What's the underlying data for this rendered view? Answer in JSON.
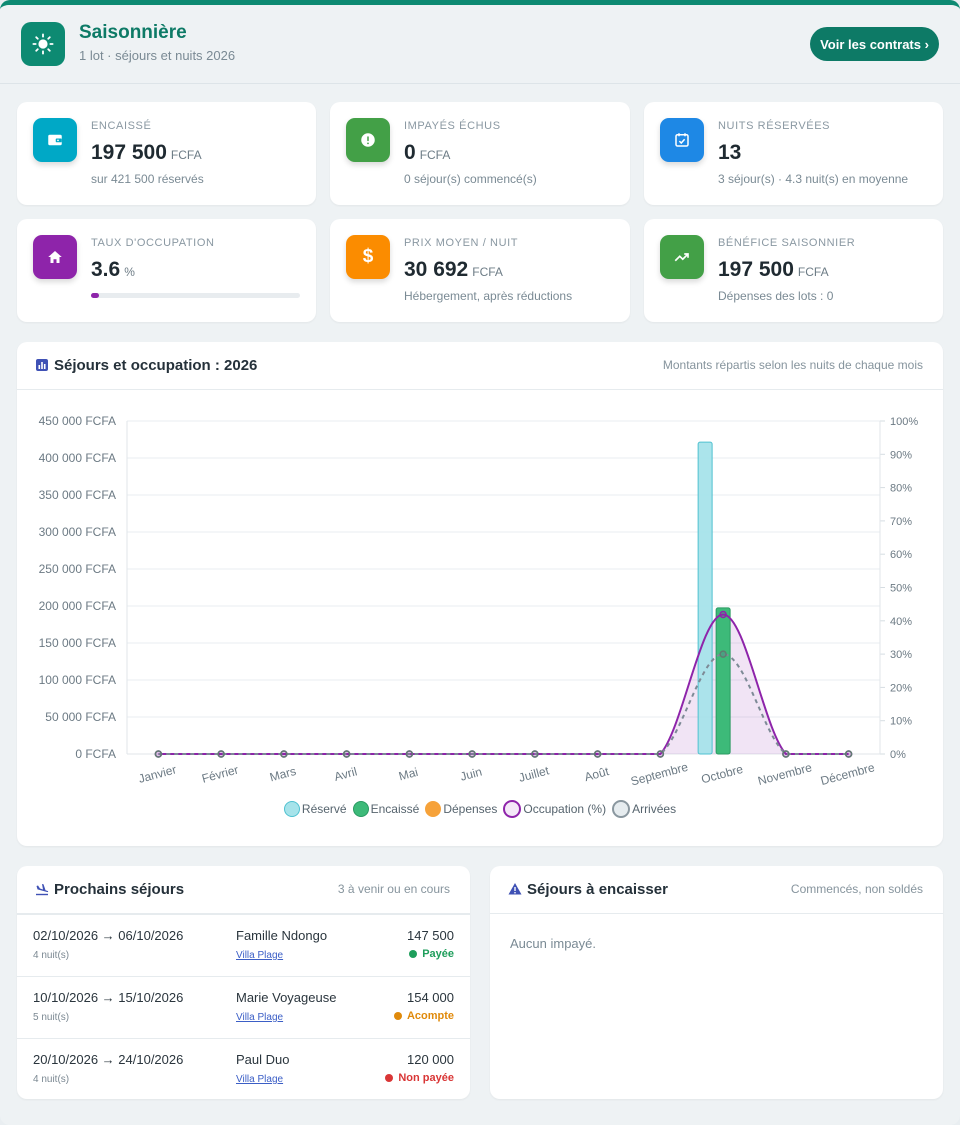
{
  "header": {
    "title": "Saisonnière",
    "subtitle": "1 lot · séjours et nuits 2026",
    "contracts_button": "Voir les contrats ›"
  },
  "kpis": [
    {
      "label": "Encaissé",
      "value": "197 500",
      "unit": "FCFA",
      "sub": "sur 421 500 réservés",
      "color": "#00a8c6",
      "icon": "wallet-icon"
    },
    {
      "label": "Impayés échus",
      "value": "0",
      "unit": "FCFA",
      "sub": "0 séjour(s) commencé(s)",
      "color": "#43a047",
      "icon": "alert-icon"
    },
    {
      "label": "Nuits réservées",
      "value": "13",
      "unit": "",
      "sub": "3 séjour(s) · 4.3 nuit(s) en moyenne",
      "color": "#1e88e5",
      "icon": "calendar-check-icon"
    },
    {
      "label": "Taux d'occupation",
      "value": "3.6",
      "unit": "%",
      "sub": "",
      "progress": 3.6,
      "color": "#8e24aa",
      "icon": "home-icon"
    },
    {
      "label": "Prix moyen / nuit",
      "value": "30 692",
      "unit": "FCFA",
      "sub": "Hébergement, après réductions",
      "color": "#fb8c00",
      "icon": "dollar-icon"
    },
    {
      "label": "Bénéfice saisonnier",
      "value": "197 500",
      "unit": "FCFA",
      "sub": "Dépenses des lots : 0",
      "color": "#43a047",
      "icon": "trending-up-icon"
    }
  ],
  "chart_panel": {
    "title": "Séjours et occupation : 2026",
    "hint": "Montants répartis selon les nuits de chaque mois"
  },
  "chart_data": {
    "type": "bar",
    "categories": [
      "Janvier",
      "Février",
      "Mars",
      "Avril",
      "Mai",
      "Juin",
      "Juillet",
      "Août",
      "Septembre",
      "Octobre",
      "Novembre",
      "Décembre"
    ],
    "series": [
      {
        "name": "Réservé",
        "type": "bar",
        "axis": "left",
        "color": "#a6e3ea",
        "values": [
          0,
          0,
          0,
          0,
          0,
          0,
          0,
          0,
          0,
          421500,
          0,
          0
        ]
      },
      {
        "name": "Encaissé",
        "type": "bar",
        "axis": "left",
        "color": "#3dba79",
        "values": [
          0,
          0,
          0,
          0,
          0,
          0,
          0,
          0,
          0,
          197500,
          0,
          0
        ]
      },
      {
        "name": "Dépenses",
        "type": "bar",
        "axis": "left",
        "color": "#f6a23a",
        "values": [
          0,
          0,
          0,
          0,
          0,
          0,
          0,
          0,
          0,
          0,
          0,
          0
        ]
      },
      {
        "name": "Occupation (%)",
        "type": "line",
        "axis": "right",
        "color": "#8e24aa",
        "values": [
          0,
          0,
          0,
          0,
          0,
          0,
          0,
          0,
          0,
          41.9,
          0,
          0
        ]
      },
      {
        "name": "Arrivées",
        "type": "line",
        "axis": "right",
        "color": "#7d8a96",
        "dashed": true,
        "values": [
          0,
          0,
          0,
          0,
          0,
          0,
          0,
          0,
          0,
          30,
          0,
          0
        ]
      }
    ],
    "ylim": [
      0,
      450000
    ],
    "yticks": [
      "0 FCFA",
      "50 000 FCFA",
      "100 000 FCFA",
      "150 000 FCFA",
      "200 000 FCFA",
      "250 000 FCFA",
      "300 000 FCFA",
      "350 000 FCFA",
      "400 000 FCFA",
      "450 000 FCFA"
    ],
    "y2lim": [
      0,
      100
    ],
    "y2ticks": [
      "0%",
      "10%",
      "20%",
      "30%",
      "40%",
      "50%",
      "60%",
      "70%",
      "80%",
      "90%",
      "100%"
    ],
    "grid": true,
    "legend": "bottom"
  },
  "upcoming": {
    "title": "Prochains séjours",
    "hint": "3 à venir ou en cours",
    "rows": [
      {
        "dates": "02/10/2026 → 06/10/2026",
        "nights": "4 nuit(s)",
        "name": "Famille Ndongo",
        "villa": "Villa Plage",
        "amount": "147 500",
        "status": "Payée",
        "status_color": "#1e9e5b"
      },
      {
        "dates": "10/10/2026 → 15/10/2026",
        "nights": "5 nuit(s)",
        "name": "Marie Voyageuse",
        "villa": "Villa Plage",
        "amount": "154 000",
        "status": "Acompte",
        "status_color": "#e08a0b"
      },
      {
        "dates": "20/10/2026 → 24/10/2026",
        "nights": "4 nuit(s)",
        "name": "Paul Duo",
        "villa": "Villa Plage",
        "amount": "120 000",
        "status": "Non payée",
        "status_color": "#d93636"
      }
    ]
  },
  "to_collect": {
    "title": "Séjours à encaisser",
    "hint": "Commencés, non soldés",
    "empty": "Aucun impayé."
  }
}
